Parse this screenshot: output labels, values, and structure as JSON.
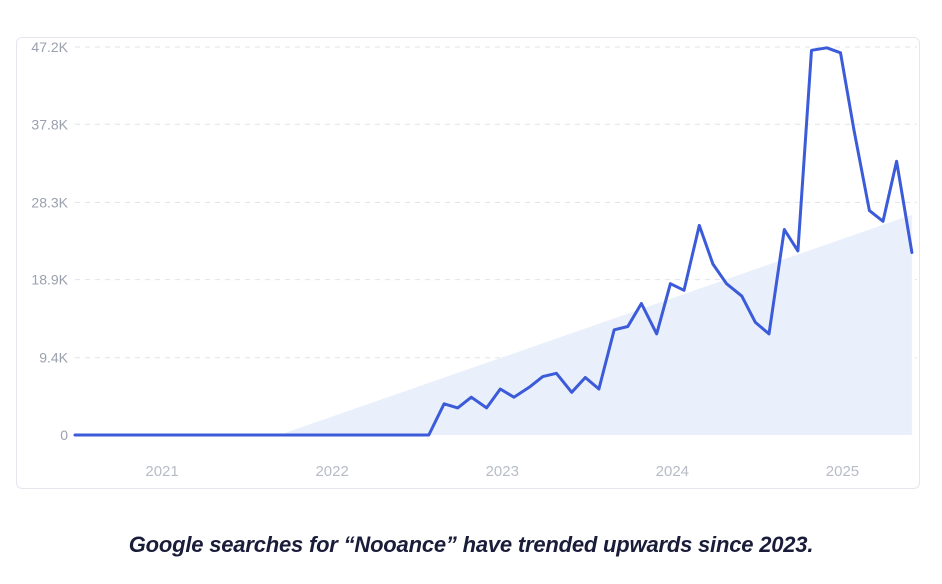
{
  "caption": "Google searches for “Nooance” have trended upwards since 2023.",
  "colors": {
    "line": "#3b5bd9",
    "trend_fill": "#eaf0fb",
    "grid": "#dfe3ea"
  },
  "chart_data": {
    "type": "line",
    "title": "",
    "xlabel": "",
    "ylabel": "",
    "y_ticks": [
      "0",
      "9.4K",
      "18.9K",
      "28.3K",
      "37.8K",
      "47.2K"
    ],
    "y_tick_values": [
      0,
      9400,
      18900,
      28300,
      37800,
      47200
    ],
    "x_ticks": [
      "2021",
      "2022",
      "2023",
      "2024",
      "2025"
    ],
    "x_tick_values": [
      2021.0,
      2022.0,
      2023.0,
      2024.0,
      2025.0
    ],
    "xlim": [
      2020.5,
      2025.45
    ],
    "ylim": [
      0,
      47200
    ],
    "grid": true,
    "legend": "none",
    "series": [
      {
        "x": [
          2020.5,
          2020.6,
          2020.7,
          2020.8,
          2020.9,
          2021.0,
          2021.1,
          2021.2,
          2021.3,
          2021.4,
          2021.5,
          2021.6,
          2021.7,
          2021.8,
          2021.9,
          2022.0,
          2022.1,
          2022.2,
          2022.3,
          2022.4,
          2022.5,
          2022.58,
          2022.67,
          2022.75,
          2022.83,
          2022.92,
          2023.0,
          2023.08,
          2023.17,
          2023.25,
          2023.33,
          2023.42,
          2023.5,
          2023.58,
          2023.67,
          2023.75,
          2023.83,
          2023.92,
          2024.0,
          2024.08,
          2024.17,
          2024.25,
          2024.33,
          2024.42,
          2024.5,
          2024.58,
          2024.67,
          2024.75,
          2024.83,
          2024.92,
          2025.0,
          2025.08,
          2025.17,
          2025.25,
          2025.33,
          2025.42
        ],
        "y": [
          0,
          0,
          0,
          0,
          0,
          0,
          0,
          0,
          0,
          0,
          0,
          0,
          0,
          0,
          0,
          0,
          0,
          0,
          0,
          0,
          0,
          0,
          3800,
          3300,
          4600,
          3300,
          5600,
          4600,
          5800,
          7100,
          7500,
          5200,
          7000,
          5600,
          12800,
          13200,
          16000,
          12300,
          18400,
          17600,
          25500,
          20800,
          18400,
          16900,
          13700,
          12300,
          25000,
          22400,
          46800,
          47100,
          46500,
          37000,
          27300,
          26000,
          33300,
          22200
        ]
      }
    ],
    "trend": {
      "x": [
        2021.7,
        2025.42
      ],
      "y": [
        0,
        26800
      ]
    }
  }
}
